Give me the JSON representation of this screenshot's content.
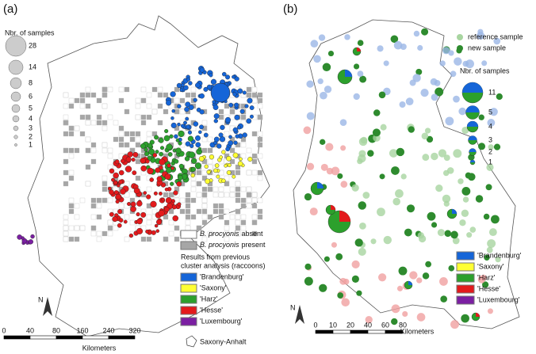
{
  "panel_a": {
    "label": "(a)",
    "size_legend": {
      "title": "Nbr. of samples",
      "labels": [
        "28",
        "14",
        "8",
        "6",
        "5",
        "4",
        "3",
        "2",
        "1"
      ]
    },
    "absent": {
      "species": "B. procyonis",
      "text": "absent"
    },
    "present": {
      "species": "B. procyonis",
      "text": "present"
    },
    "results_title": [
      "Results from previous",
      "cluster analysis (raccoons)"
    ],
    "clusters": [
      {
        "name": "'Brandenburg'",
        "color": "#1565d8"
      },
      {
        "name": "'Saxony'",
        "color": "#ffff33"
      },
      {
        "name": "'Harz'",
        "color": "#2ca02c"
      },
      {
        "name": "'Hesse'",
        "color": "#e31a1c"
      },
      {
        "name": "'Luxembourg'",
        "color": "#7b1fa2"
      }
    ],
    "north": "N",
    "scale_labels": [
      "0",
      "40",
      "80",
      "160",
      "240",
      "320"
    ],
    "scale_unit": "Kilometers",
    "region": "Saxony-Anhalt"
  },
  "panel_b": {
    "label": "(b)",
    "reference": {
      "text": "reference sample",
      "color": "#a8d5a0"
    },
    "new": {
      "text": "new sample",
      "color": "#2e8b2e"
    },
    "size_legend": {
      "title": "Nbr. of samples",
      "labels": [
        "11",
        "5",
        "4",
        "3",
        "2",
        "1"
      ]
    },
    "clusters": [
      {
        "name": "'Brandenburg'",
        "color": "#1565d8"
      },
      {
        "name": "'Saxony'",
        "color": "#ffff33"
      },
      {
        "name": "'Harz'",
        "color": "#2ca02c"
      },
      {
        "name": "'Hesse'",
        "color": "#e31a1c"
      },
      {
        "name": "'Luxembourg'",
        "color": "#7b1fa2"
      }
    ],
    "north": "N",
    "scale_labels": [
      "0",
      "10",
      "20",
      "40",
      "60",
      "80"
    ],
    "scale_unit": "Kilometers"
  }
}
